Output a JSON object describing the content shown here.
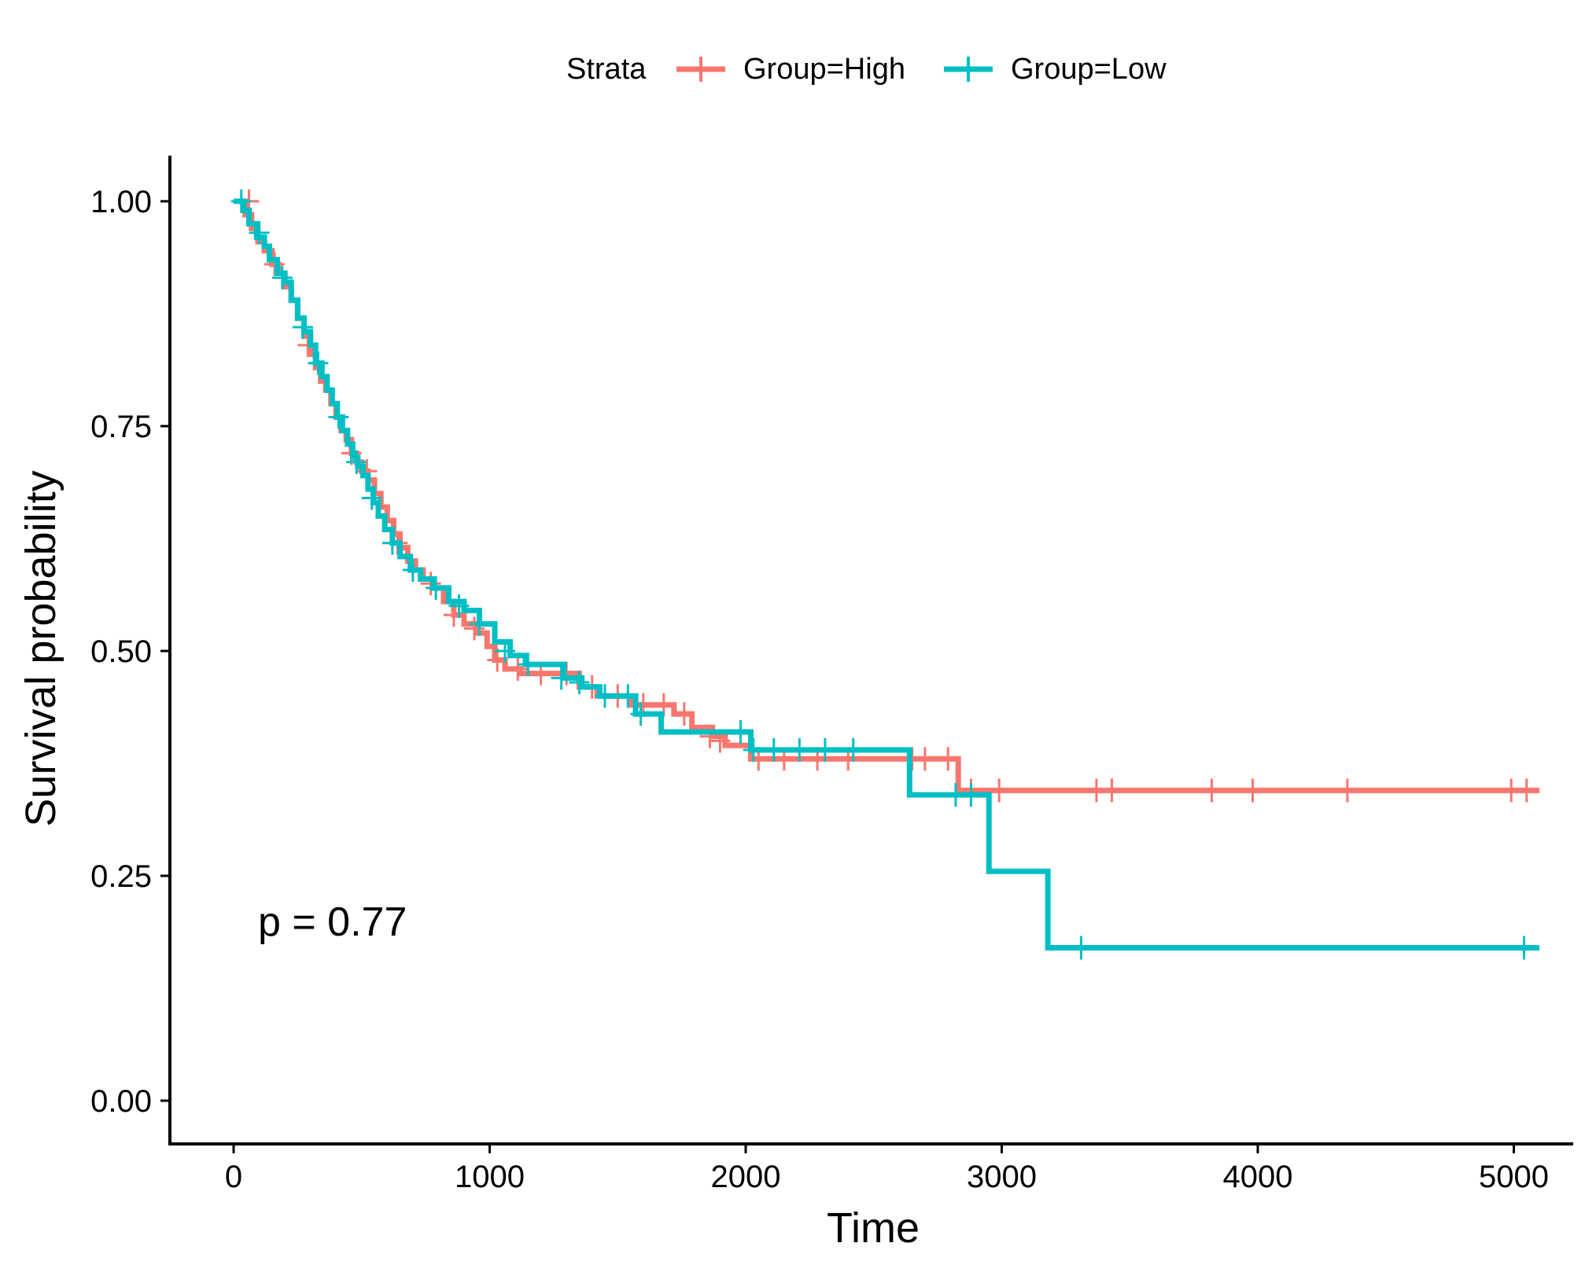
{
  "chart_data": {
    "type": "line",
    "subtype": "kaplan-meier-step",
    "xlabel": "Time",
    "ylabel": "Survival probability",
    "xlim": [
      -250,
      5250
    ],
    "ylim": [
      -0.05,
      1.05
    ],
    "xticks": [
      0,
      1000,
      2000,
      3000,
      4000,
      5000
    ],
    "yticks": [
      0,
      0.25,
      0.5,
      0.75,
      1.0
    ],
    "xtick_labels": [
      "0",
      "1000",
      "2000",
      "3000",
      "4000",
      "5000"
    ],
    "ytick_labels": [
      "0.00",
      "0.25",
      "0.50",
      "0.75",
      "1.00"
    ],
    "grid": false,
    "legend": {
      "title": "Strata",
      "placement": "top"
    },
    "annotation": "p = 0.77",
    "series": [
      {
        "name": "Group=High",
        "color": "#F8766D",
        "steps": [
          [
            0,
            1.0
          ],
          [
            45,
            0.985
          ],
          [
            70,
            0.97
          ],
          [
            95,
            0.955
          ],
          [
            120,
            0.945
          ],
          [
            150,
            0.93
          ],
          [
            175,
            0.92
          ],
          [
            200,
            0.905
          ],
          [
            225,
            0.89
          ],
          [
            250,
            0.87
          ],
          [
            275,
            0.85
          ],
          [
            300,
            0.83
          ],
          [
            320,
            0.815
          ],
          [
            340,
            0.8
          ],
          [
            360,
            0.79
          ],
          [
            380,
            0.775
          ],
          [
            400,
            0.76
          ],
          [
            420,
            0.745
          ],
          [
            440,
            0.735
          ],
          [
            460,
            0.72
          ],
          [
            480,
            0.71
          ],
          [
            500,
            0.7
          ],
          [
            525,
            0.69
          ],
          [
            550,
            0.675
          ],
          [
            575,
            0.66
          ],
          [
            600,
            0.645
          ],
          [
            625,
            0.63
          ],
          [
            650,
            0.615
          ],
          [
            680,
            0.6
          ],
          [
            710,
            0.59
          ],
          [
            740,
            0.58
          ],
          [
            780,
            0.57
          ],
          [
            820,
            0.555
          ],
          [
            860,
            0.54
          ],
          [
            900,
            0.53
          ],
          [
            950,
            0.52
          ],
          [
            990,
            0.505
          ],
          [
            1020,
            0.49
          ],
          [
            1060,
            0.48
          ],
          [
            1120,
            0.475
          ],
          [
            1350,
            0.46
          ],
          [
            1420,
            0.45
          ],
          [
            1550,
            0.44
          ],
          [
            1720,
            0.43
          ],
          [
            1790,
            0.415
          ],
          [
            1870,
            0.405
          ],
          [
            1920,
            0.395
          ],
          [
            2020,
            0.38
          ],
          [
            2830,
            0.345
          ],
          [
            5100,
            0.345
          ]
        ],
        "censored": [
          [
            60,
            1.0
          ],
          [
            160,
            0.93
          ],
          [
            290,
            0.84
          ],
          [
            460,
            0.72
          ],
          [
            520,
            0.7
          ],
          [
            640,
            0.62
          ],
          [
            770,
            0.575
          ],
          [
            860,
            0.54
          ],
          [
            940,
            0.525
          ],
          [
            1030,
            0.49
          ],
          [
            1110,
            0.48
          ],
          [
            1200,
            0.475
          ],
          [
            1300,
            0.475
          ],
          [
            1400,
            0.46
          ],
          [
            1500,
            0.45
          ],
          [
            1600,
            0.44
          ],
          [
            1680,
            0.44
          ],
          [
            1760,
            0.43
          ],
          [
            1860,
            0.405
          ],
          [
            1900,
            0.4
          ],
          [
            2050,
            0.38
          ],
          [
            2150,
            0.38
          ],
          [
            2280,
            0.38
          ],
          [
            2400,
            0.38
          ],
          [
            2650,
            0.38
          ],
          [
            2700,
            0.38
          ],
          [
            2790,
            0.38
          ],
          [
            2880,
            0.345
          ],
          [
            2990,
            0.345
          ],
          [
            3370,
            0.345
          ],
          [
            3430,
            0.345
          ],
          [
            3820,
            0.345
          ],
          [
            3980,
            0.345
          ],
          [
            4350,
            0.345
          ],
          [
            4990,
            0.345
          ],
          [
            5050,
            0.345
          ]
        ]
      },
      {
        "name": "Group=Low",
        "color": "#00BFC4",
        "steps": [
          [
            0,
            1.0
          ],
          [
            40,
            0.99
          ],
          [
            60,
            0.975
          ],
          [
            90,
            0.96
          ],
          [
            120,
            0.95
          ],
          [
            140,
            0.935
          ],
          [
            170,
            0.92
          ],
          [
            200,
            0.91
          ],
          [
            225,
            0.89
          ],
          [
            250,
            0.87
          ],
          [
            275,
            0.855
          ],
          [
            300,
            0.84
          ],
          [
            320,
            0.82
          ],
          [
            345,
            0.805
          ],
          [
            365,
            0.79
          ],
          [
            385,
            0.775
          ],
          [
            405,
            0.76
          ],
          [
            425,
            0.745
          ],
          [
            445,
            0.73
          ],
          [
            465,
            0.715
          ],
          [
            485,
            0.705
          ],
          [
            505,
            0.695
          ],
          [
            525,
            0.68
          ],
          [
            545,
            0.665
          ],
          [
            565,
            0.65
          ],
          [
            590,
            0.635
          ],
          [
            620,
            0.62
          ],
          [
            650,
            0.605
          ],
          [
            690,
            0.59
          ],
          [
            730,
            0.58
          ],
          [
            780,
            0.57
          ],
          [
            840,
            0.555
          ],
          [
            900,
            0.545
          ],
          [
            960,
            0.53
          ],
          [
            1020,
            0.51
          ],
          [
            1080,
            0.495
          ],
          [
            1140,
            0.485
          ],
          [
            1290,
            0.47
          ],
          [
            1360,
            0.46
          ],
          [
            1430,
            0.45
          ],
          [
            1570,
            0.43
          ],
          [
            1670,
            0.41
          ],
          [
            2020,
            0.39
          ],
          [
            2640,
            0.34
          ],
          [
            2950,
            0.255
          ],
          [
            3180,
            0.17
          ],
          [
            5100,
            0.17
          ]
        ],
        "censored": [
          [
            30,
            1.0
          ],
          [
            100,
            0.965
          ],
          [
            190,
            0.915
          ],
          [
            270,
            0.86
          ],
          [
            330,
            0.82
          ],
          [
            410,
            0.76
          ],
          [
            480,
            0.71
          ],
          [
            540,
            0.67
          ],
          [
            620,
            0.62
          ],
          [
            700,
            0.59
          ],
          [
            790,
            0.57
          ],
          [
            880,
            0.55
          ],
          [
            960,
            0.53
          ],
          [
            1060,
            0.5
          ],
          [
            1150,
            0.485
          ],
          [
            1280,
            0.47
          ],
          [
            1350,
            0.465
          ],
          [
            1450,
            0.45
          ],
          [
            1540,
            0.45
          ],
          [
            1590,
            0.43
          ],
          [
            1980,
            0.41
          ],
          [
            2030,
            0.39
          ],
          [
            2110,
            0.39
          ],
          [
            2210,
            0.39
          ],
          [
            2310,
            0.39
          ],
          [
            2420,
            0.39
          ],
          [
            2820,
            0.34
          ],
          [
            2880,
            0.34
          ],
          [
            3310,
            0.17
          ],
          [
            5040,
            0.17
          ]
        ]
      }
    ]
  }
}
